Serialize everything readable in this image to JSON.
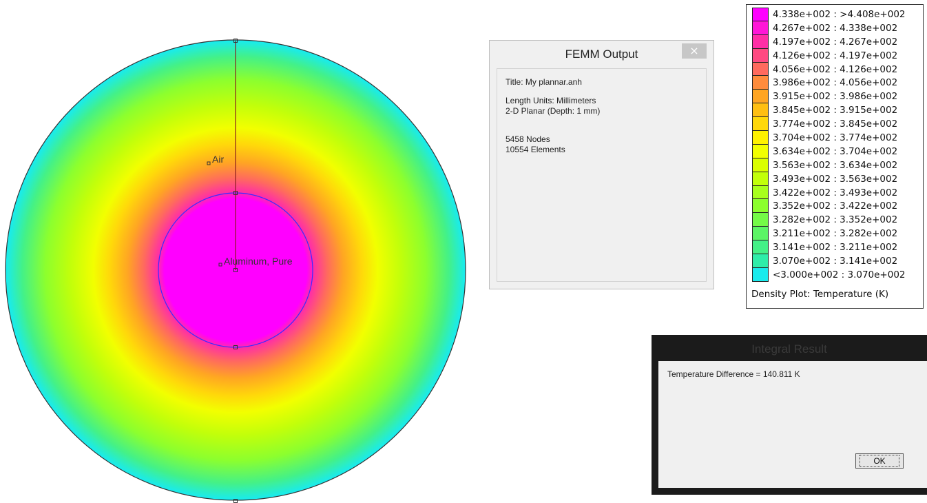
{
  "plot": {
    "region_labels": [
      "Air",
      "Aluminum, Pure"
    ]
  },
  "femm_output": {
    "title": "FEMM Output",
    "close_label": "×",
    "lines": {
      "title_line": "Title: My plannar.anh",
      "length_units": "Length Units: Millimeters",
      "planar": "2-D Planar (Depth: 1 mm)",
      "nodes": "5458 Nodes",
      "elements": "10554 Elements"
    }
  },
  "legend": {
    "entries": [
      {
        "label": "4.338e+002 : >4.408e+002",
        "color": "#ff00ff"
      },
      {
        "label": "4.267e+002 : 4.338e+002",
        "color": "#ff17d7"
      },
      {
        "label": "4.197e+002 : 4.267e+002",
        "color": "#ff2ea6"
      },
      {
        "label": "4.126e+002 : 4.197e+002",
        "color": "#ff4a82"
      },
      {
        "label": "4.056e+002 : 4.126e+002",
        "color": "#ff6a5e"
      },
      {
        "label": "3.986e+002 : 4.056e+002",
        "color": "#ff8c3c"
      },
      {
        "label": "3.915e+002 : 3.986e+002",
        "color": "#ffa523"
      },
      {
        "label": "3.845e+002 : 3.915e+002",
        "color": "#ffbf12"
      },
      {
        "label": "3.774e+002 : 3.845e+002",
        "color": "#ffd80a"
      },
      {
        "label": "3.704e+002 : 3.774e+002",
        "color": "#fff200"
      },
      {
        "label": "3.634e+002 : 3.704e+002",
        "color": "#f2ff00"
      },
      {
        "label": "3.563e+002 : 3.634e+002",
        "color": "#dbff00"
      },
      {
        "label": "3.493e+002 : 3.563e+002",
        "color": "#c2ff0a"
      },
      {
        "label": "3.422e+002 : 3.493e+002",
        "color": "#a8ff1c"
      },
      {
        "label": "3.352e+002 : 3.422e+002",
        "color": "#8cff2e"
      },
      {
        "label": "3.282e+002 : 3.352e+002",
        "color": "#74fa47"
      },
      {
        "label": "3.211e+002 : 3.282e+002",
        "color": "#5cf565"
      },
      {
        "label": "3.141e+002 : 3.211e+002",
        "color": "#44f187"
      },
      {
        "label": "3.070e+002 : 3.141e+002",
        "color": "#2feda9"
      },
      {
        "label": "<3.000e+002 : 3.070e+002",
        "color": "#19ebed"
      }
    ],
    "caption": "Density Plot: Temperature (K)"
  },
  "integral_result": {
    "title": "Integral Result",
    "result_text": "Temperature Difference = 140.811 K",
    "ok_label": "OK"
  }
}
